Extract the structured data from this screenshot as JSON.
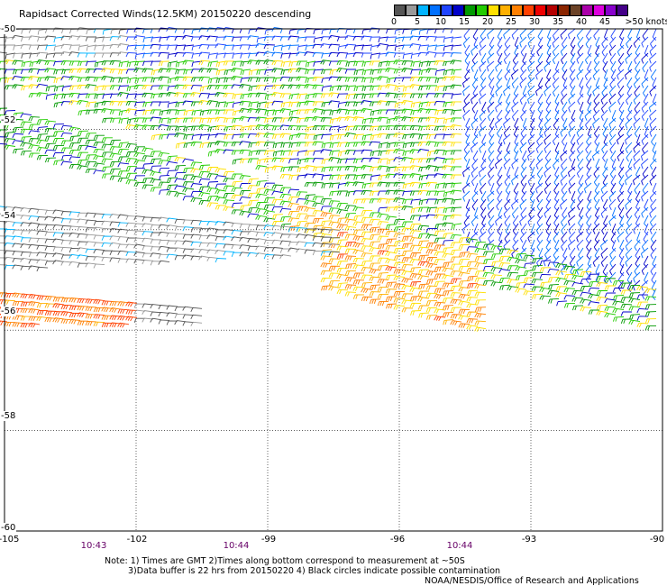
{
  "title": "Rapidsact Corrected Winds(12.5KM) 20150220 descending",
  "legend": {
    "unit_label": ">50 knots",
    "bins": [
      {
        "label": "0",
        "color": "#555555"
      },
      {
        "label": "",
        "color": "#999999"
      },
      {
        "label": "5",
        "color": "#00b4ff"
      },
      {
        "label": "",
        "color": "#0070ff"
      },
      {
        "label": "10",
        "color": "#1f44ff"
      },
      {
        "label": "",
        "color": "#0000c8"
      },
      {
        "label": "15",
        "color": "#009900"
      },
      {
        "label": "",
        "color": "#22cc00"
      },
      {
        "label": "20",
        "color": "#ffe000"
      },
      {
        "label": "",
        "color": "#ffb000"
      },
      {
        "label": "25",
        "color": "#ff8000"
      },
      {
        "label": "",
        "color": "#ff4000"
      },
      {
        "label": "30",
        "color": "#ee0000"
      },
      {
        "label": "",
        "color": "#b40000"
      },
      {
        "label": "35",
        "color": "#8b2500"
      },
      {
        "label": "",
        "color": "#6b4226"
      },
      {
        "label": "40",
        "color": "#aa00aa"
      },
      {
        "label": "",
        "color": "#dd00dd"
      },
      {
        "label": "45",
        "color": "#8800cc"
      },
      {
        "label": "",
        "color": "#440088"
      }
    ]
  },
  "axes": {
    "lat_labels": [
      "-50",
      "-52",
      "-54",
      "-56",
      "-58",
      "-60"
    ],
    "lon_labels": [
      "-105",
      "-102",
      "-99",
      "-96",
      "-93",
      "-90"
    ]
  },
  "time_labels": [
    "10:43",
    "10:44",
    "10:44"
  ],
  "notes": [
    "Note: 1) Times are GMT 2)Times along bottom correspond to measurement at ~50S",
    "3)Data buffer is 22 hrs from 20150220 4) Black circles indicate possible contamination",
    "NOAA/NESDIS/Office of Research and Applications"
  ],
  "chart_data": {
    "type": "scatter",
    "subtype": "wind-barbs",
    "title": "Rapidsact Corrected Winds(12.5KM) 20150220 descending",
    "xlim": [
      -105,
      -90
    ],
    "ylim": [
      -60,
      -50
    ],
    "grid": true,
    "units": "knots",
    "colorbar": [
      0,
      5,
      10,
      15,
      20,
      25,
      30,
      35,
      40,
      45,
      50
    ],
    "swaths": [
      {
        "name": "upper",
        "speed_range": [
          5,
          20
        ]
      },
      {
        "name": "middle",
        "speed_range": [
          0,
          30
        ]
      },
      {
        "name": "lower",
        "speed_range": [
          0,
          30
        ]
      }
    ]
  }
}
